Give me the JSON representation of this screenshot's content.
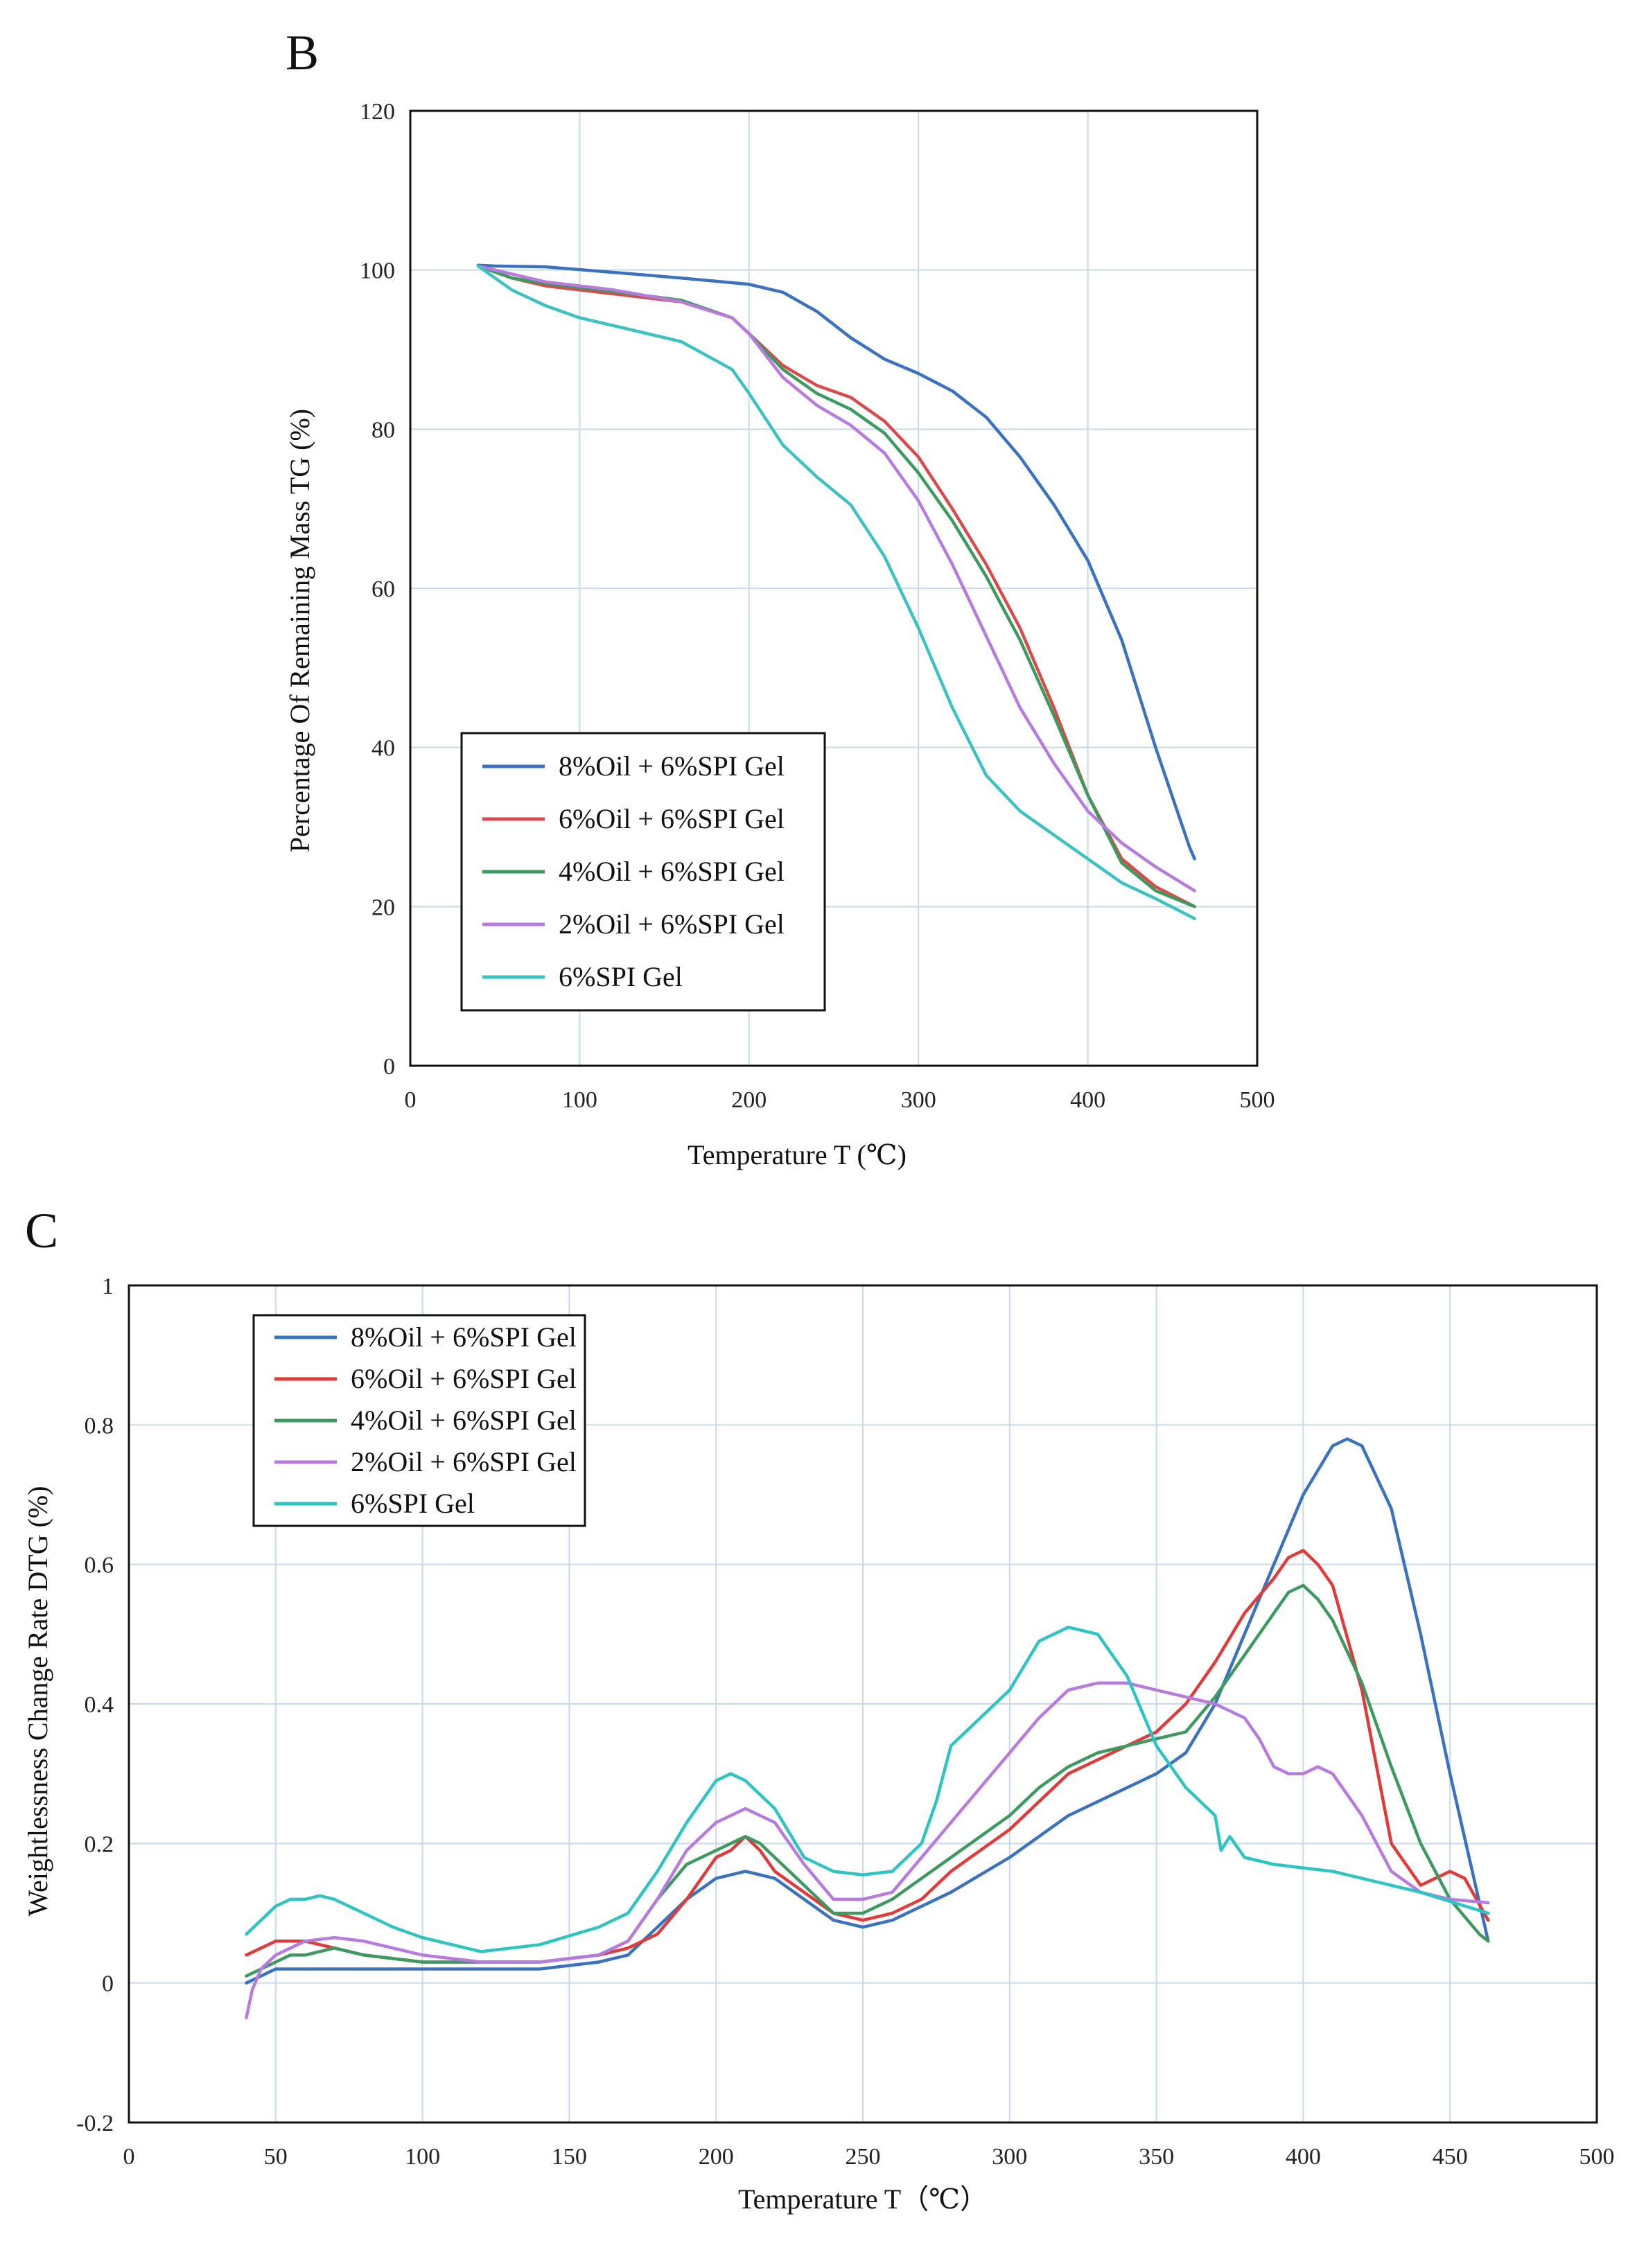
{
  "chart_data": [
    {
      "panel": "B",
      "type": "line",
      "title": "",
      "xlabel": "Temperature T (℃)",
      "ylabel": "Percentage Of Remaining Mass TG (%)",
      "xlim": [
        0,
        500
      ],
      "ylim": [
        0,
        120
      ],
      "xticks": [
        0,
        100,
        200,
        300,
        400,
        500
      ],
      "yticks": [
        0,
        20,
        40,
        60,
        80,
        100,
        120
      ],
      "grid": true,
      "legend_position": "bottom-left",
      "series": [
        {
          "name": "8%Oil + 6%SPI Gel",
          "color": "#3b72c0",
          "x": [
            40,
            50,
            80,
            120,
            160,
            200,
            220,
            240,
            260,
            280,
            300,
            320,
            340,
            360,
            380,
            400,
            420,
            440,
            460,
            463
          ],
          "y": [
            100.6,
            100.5,
            100.4,
            99.7,
            99.0,
            98.2,
            97.2,
            94.8,
            91.5,
            88.8,
            87.0,
            84.8,
            81.5,
            76.5,
            70.5,
            63.5,
            53.5,
            40.0,
            27.5,
            26.0
          ]
        },
        {
          "name": "6%Oil + 6%SPI Gel",
          "color": "#d94a4a",
          "x": [
            40,
            60,
            80,
            120,
            160,
            190,
            200,
            220,
            240,
            260,
            280,
            300,
            320,
            340,
            360,
            380,
            400,
            420,
            440,
            463
          ],
          "y": [
            100.5,
            99.0,
            98.0,
            97.0,
            96.0,
            94.0,
            92.0,
            88.0,
            85.5,
            84.0,
            81.0,
            76.5,
            70.0,
            63.0,
            55.0,
            45.0,
            34.0,
            26.0,
            22.5,
            20.0
          ]
        },
        {
          "name": "4%Oil + 6%SPI Gel",
          "color": "#3c9a5f",
          "x": [
            40,
            60,
            80,
            120,
            160,
            190,
            200,
            220,
            240,
            260,
            280,
            300,
            320,
            340,
            360,
            380,
            400,
            420,
            440,
            463
          ],
          "y": [
            100.5,
            99.0,
            98.3,
            97.3,
            96.2,
            94.0,
            92.0,
            87.5,
            84.5,
            82.5,
            79.5,
            74.5,
            68.5,
            61.5,
            53.5,
            44.0,
            34.0,
            25.5,
            22.0,
            20.0
          ]
        },
        {
          "name": "2%Oil + 6%SPI Gel",
          "color": "#b77be0",
          "x": [
            40,
            60,
            80,
            120,
            160,
            190,
            200,
            220,
            240,
            260,
            280,
            300,
            320,
            340,
            360,
            380,
            400,
            420,
            440,
            463
          ],
          "y": [
            100.5,
            99.5,
            98.5,
            97.5,
            96.0,
            94.0,
            92.0,
            86.5,
            83.0,
            80.5,
            77.0,
            71.0,
            63.0,
            54.0,
            45.0,
            38.0,
            32.0,
            28.0,
            25.0,
            22.0
          ]
        },
        {
          "name": "6%SPI Gel",
          "color": "#3cc2c2",
          "x": [
            40,
            50,
            60,
            80,
            100,
            120,
            160,
            190,
            200,
            220,
            240,
            260,
            280,
            300,
            320,
            340,
            360,
            380,
            400,
            420,
            440,
            463
          ],
          "y": [
            100.5,
            99.0,
            97.5,
            95.5,
            94.0,
            93.0,
            91.0,
            87.5,
            84.5,
            78.0,
            74.0,
            70.5,
            64.0,
            55.0,
            45.0,
            36.5,
            32.0,
            29.0,
            26.0,
            23.0,
            21.0,
            18.5
          ]
        }
      ]
    },
    {
      "panel": "C",
      "type": "line",
      "title": "",
      "xlabel": "Temperature   T（℃）",
      "ylabel": "Weightlessness Change Rate  DTG (%)",
      "xlim": [
        0,
        500
      ],
      "ylim": [
        -0.2,
        1
      ],
      "xticks": [
        0,
        50,
        100,
        150,
        200,
        250,
        300,
        350,
        400,
        450,
        500
      ],
      "yticks": [
        -0.2,
        0,
        0.2,
        0.4,
        0.6,
        0.8,
        1
      ],
      "grid": true,
      "legend_position": "top-left",
      "series": [
        {
          "name": "8%Oil + 6%SPI Gel",
          "color": "#3b72c0",
          "x": [
            40,
            45,
            50,
            60,
            80,
            100,
            120,
            140,
            160,
            170,
            180,
            190,
            200,
            210,
            220,
            230,
            240,
            250,
            260,
            280,
            300,
            320,
            340,
            350,
            360,
            370,
            380,
            390,
            400,
            410,
            415,
            420,
            430,
            440,
            450,
            463
          ],
          "y": [
            0.0,
            0.01,
            0.02,
            0.02,
            0.02,
            0.02,
            0.02,
            0.02,
            0.03,
            0.04,
            0.08,
            0.12,
            0.15,
            0.16,
            0.15,
            0.12,
            0.09,
            0.08,
            0.09,
            0.13,
            0.18,
            0.24,
            0.28,
            0.3,
            0.33,
            0.4,
            0.5,
            0.6,
            0.7,
            0.77,
            0.78,
            0.77,
            0.68,
            0.5,
            0.3,
            0.06
          ]
        },
        {
          "name": "6%Oil + 6%SPI Gel",
          "color": "#e03a3a",
          "x": [
            40,
            45,
            50,
            55,
            60,
            70,
            80,
            100,
            120,
            140,
            160,
            170,
            180,
            190,
            200,
            205,
            210,
            215,
            220,
            230,
            240,
            250,
            260,
            270,
            280,
            290,
            300,
            310,
            320,
            330,
            340,
            350,
            360,
            370,
            380,
            390,
            395,
            400,
            405,
            410,
            420,
            430,
            440,
            445,
            450,
            455,
            463
          ],
          "y": [
            0.04,
            0.05,
            0.06,
            0.06,
            0.06,
            0.05,
            0.04,
            0.03,
            0.03,
            0.03,
            0.04,
            0.05,
            0.07,
            0.12,
            0.18,
            0.19,
            0.21,
            0.19,
            0.16,
            0.13,
            0.1,
            0.09,
            0.1,
            0.12,
            0.16,
            0.19,
            0.22,
            0.26,
            0.3,
            0.32,
            0.34,
            0.36,
            0.4,
            0.46,
            0.53,
            0.58,
            0.61,
            0.62,
            0.6,
            0.57,
            0.42,
            0.2,
            0.14,
            0.15,
            0.16,
            0.15,
            0.09
          ]
        },
        {
          "name": "4%Oil + 6%SPI Gel",
          "color": "#3c9a5f",
          "x": [
            40,
            45,
            50,
            55,
            60,
            70,
            80,
            100,
            120,
            140,
            160,
            170,
            180,
            190,
            200,
            205,
            210,
            215,
            220,
            230,
            240,
            250,
            260,
            270,
            280,
            290,
            300,
            310,
            320,
            330,
            340,
            350,
            360,
            370,
            380,
            390,
            395,
            400,
            405,
            410,
            420,
            430,
            440,
            450,
            460,
            463
          ],
          "y": [
            0.01,
            0.02,
            0.03,
            0.04,
            0.04,
            0.05,
            0.04,
            0.03,
            0.03,
            0.03,
            0.04,
            0.06,
            0.12,
            0.17,
            0.19,
            0.2,
            0.21,
            0.2,
            0.18,
            0.14,
            0.1,
            0.1,
            0.12,
            0.15,
            0.18,
            0.21,
            0.24,
            0.28,
            0.31,
            0.33,
            0.34,
            0.35,
            0.36,
            0.41,
            0.47,
            0.53,
            0.56,
            0.57,
            0.55,
            0.52,
            0.43,
            0.31,
            0.2,
            0.12,
            0.07,
            0.06
          ]
        },
        {
          "name": "2%Oil + 6%SPI Gel",
          "color": "#b77be0",
          "x": [
            40,
            42,
            45,
            50,
            55,
            60,
            70,
            80,
            100,
            120,
            140,
            160,
            170,
            180,
            190,
            200,
            205,
            210,
            220,
            230,
            240,
            250,
            260,
            270,
            280,
            290,
            300,
            310,
            320,
            330,
            340,
            350,
            360,
            370,
            380,
            385,
            390,
            395,
            400,
            405,
            410,
            420,
            430,
            440,
            450,
            463
          ],
          "y": [
            -0.05,
            -0.01,
            0.02,
            0.04,
            0.05,
            0.06,
            0.065,
            0.06,
            0.04,
            0.03,
            0.03,
            0.04,
            0.06,
            0.12,
            0.19,
            0.23,
            0.24,
            0.25,
            0.23,
            0.17,
            0.12,
            0.12,
            0.13,
            0.18,
            0.23,
            0.28,
            0.33,
            0.38,
            0.42,
            0.43,
            0.43,
            0.42,
            0.41,
            0.4,
            0.38,
            0.35,
            0.31,
            0.3,
            0.3,
            0.31,
            0.3,
            0.24,
            0.16,
            0.13,
            0.12,
            0.115
          ]
        },
        {
          "name": "6%SPI Gel",
          "color": "#2ec4c4",
          "x": [
            40,
            45,
            50,
            55,
            60,
            65,
            70,
            80,
            90,
            100,
            110,
            120,
            140,
            160,
            170,
            180,
            190,
            200,
            205,
            210,
            220,
            230,
            240,
            250,
            260,
            270,
            275,
            280,
            290,
            300,
            310,
            320,
            330,
            340,
            350,
            360,
            370,
            372,
            375,
            380,
            390,
            400,
            410,
            420,
            440,
            463
          ],
          "y": [
            0.07,
            0.09,
            0.11,
            0.12,
            0.12,
            0.125,
            0.12,
            0.1,
            0.08,
            0.065,
            0.055,
            0.045,
            0.055,
            0.08,
            0.1,
            0.16,
            0.23,
            0.29,
            0.3,
            0.29,
            0.25,
            0.18,
            0.16,
            0.155,
            0.16,
            0.2,
            0.26,
            0.34,
            0.38,
            0.42,
            0.49,
            0.51,
            0.5,
            0.44,
            0.34,
            0.28,
            0.24,
            0.19,
            0.21,
            0.18,
            0.17,
            0.165,
            0.16,
            0.15,
            0.13,
            0.1
          ]
        }
      ]
    }
  ]
}
